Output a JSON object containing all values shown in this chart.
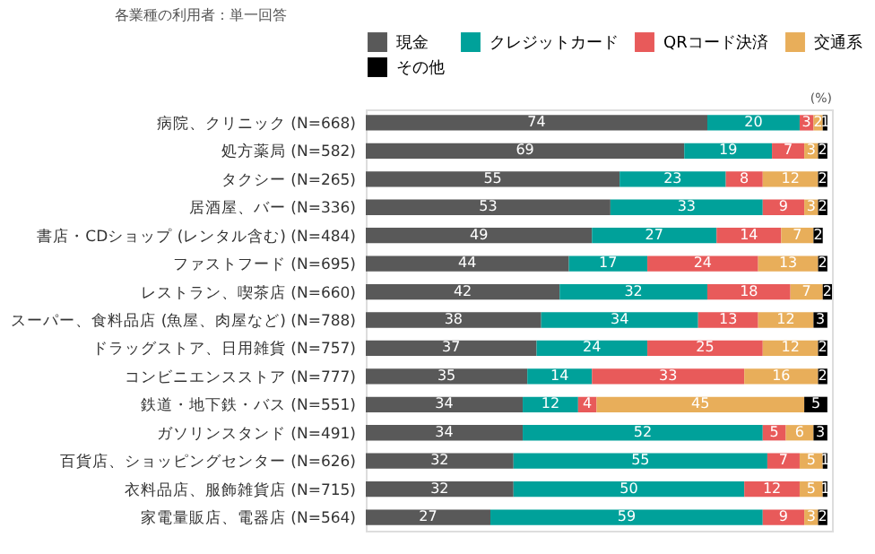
{
  "chart_data": {
    "type": "bar",
    "orientation": "horizontal",
    "stacked": true,
    "data_labels": true,
    "legend": "top",
    "grid": false,
    "annotations": [
      "各業種の利用者：単一回答",
      "(%)"
    ],
    "categories": [
      "病院、クリニック (N=668)",
      "処方薬局 (N=582)",
      "タクシー (N=265)",
      "居酒屋、バー (N=336)",
      "書店・CDショップ (レンタル含む) (N=484)",
      "ファストフード (N=695)",
      "レストラン、喫茶店 (N=660)",
      "スーパー、食料品店 (魚屋、肉屋など) (N=788)",
      "ドラッグストア、日用雑貨 (N=757)",
      "コンビニエンスストア (N=777)",
      "鉄道・地下鉄・バス (N=551)",
      "ガソリンスタンド (N=491)",
      "百貨店、ショッピングセンター (N=626)",
      "衣料品店、服飾雑貨店 (N=715)",
      "家電量販店、電器店 (N=564)"
    ],
    "series": [
      {
        "name": "現金",
        "color": "#595959",
        "values": [
          74,
          69,
          55,
          53,
          49,
          44,
          42,
          38,
          37,
          35,
          34,
          34,
          32,
          32,
          27
        ]
      },
      {
        "name": "クレジットカード",
        "color": "#00a19a",
        "values": [
          20,
          19,
          23,
          33,
          27,
          17,
          32,
          34,
          24,
          14,
          12,
          52,
          55,
          50,
          59
        ]
      },
      {
        "name": "QRコード決済",
        "color": "#e85a5a",
        "values": [
          3,
          7,
          8,
          9,
          14,
          24,
          18,
          13,
          25,
          33,
          4,
          5,
          7,
          12,
          9
        ]
      },
      {
        "name": "交通系",
        "color": "#e8ae5a",
        "values": [
          2,
          3,
          12,
          3,
          7,
          13,
          7,
          12,
          12,
          16,
          45,
          6,
          5,
          5,
          3
        ]
      },
      {
        "name": "その他",
        "color": "#000000",
        "values": [
          1,
          2,
          2,
          2,
          2,
          2,
          2,
          3,
          2,
          2,
          5,
          3,
          1,
          1,
          2
        ]
      }
    ]
  }
}
